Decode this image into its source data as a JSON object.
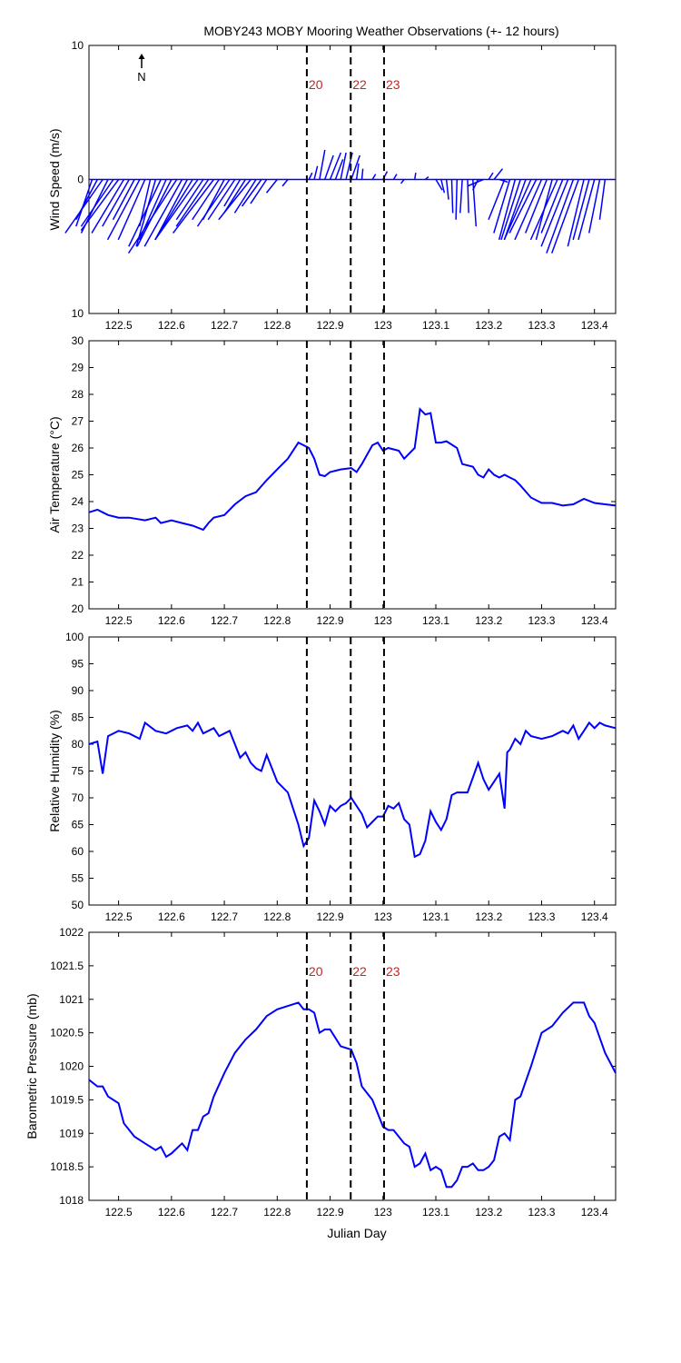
{
  "title": "MOBY243 MOBY Mooring Weather Observations (+- 12 hours)",
  "xlabel": "Julian Day",
  "x_ticks": [
    122.5,
    122.6,
    122.7,
    122.8,
    122.9,
    123,
    123.1,
    123.2,
    123.3,
    123.4
  ],
  "x_range": [
    122.444,
    123.44
  ],
  "line_color": "#0000ff",
  "marker_color": "#cc2222",
  "markers": [
    {
      "x": 122.856,
      "label": "20"
    },
    {
      "x": 122.939,
      "label": "22"
    },
    {
      "x": 123.002,
      "label": "23"
    }
  ],
  "north_label": "N",
  "chart_data": [
    {
      "type": "line",
      "name": "wind",
      "ylabel": "Wind Speed (m/s)",
      "ylim": [
        -10,
        10
      ],
      "yticks": [
        10,
        0,
        10
      ],
      "show_marker_labels": true,
      "vectors": {
        "x": [
          122.45,
          122.46,
          122.47,
          122.48,
          122.49,
          122.5,
          122.51,
          122.52,
          122.53,
          122.54,
          122.55,
          122.56,
          122.57,
          122.58,
          122.59,
          122.6,
          122.61,
          122.62,
          122.63,
          122.64,
          122.65,
          122.66,
          122.67,
          122.68,
          122.69,
          122.7,
          122.71,
          122.72,
          122.73,
          122.74,
          122.75,
          122.76,
          122.77,
          122.78,
          122.8,
          122.82,
          122.86,
          122.87,
          122.88,
          122.89,
          122.9,
          122.91,
          122.92,
          122.93,
          122.94,
          122.95,
          122.96,
          122.98,
          123.0,
          123.02,
          123.04,
          123.06,
          123.08,
          123.1,
          123.11,
          123.12,
          123.13,
          123.14,
          123.15,
          123.16,
          123.17,
          123.18,
          123.19,
          123.2,
          123.21,
          123.22,
          123.23,
          123.24,
          123.25,
          123.26,
          123.27,
          123.28,
          123.29,
          123.3,
          123.31,
          123.32,
          123.33,
          123.34,
          123.35,
          123.36,
          123.37,
          123.38,
          123.39,
          123.4,
          123.41,
          123.42
        ],
        "u": [
          -1.5,
          -2,
          -3.5,
          -2.5,
          -3,
          -3.5,
          -3,
          -2.5,
          -2,
          -3,
          -2.5,
          -1,
          -1.8,
          -3,
          -2.5,
          -3.2,
          -4.5,
          -3.5,
          -3,
          -3.5,
          -4,
          -2.5,
          -3,
          -3.8,
          -2.5,
          -2,
          -3,
          -2.5,
          -1.5,
          -2,
          -3,
          -2,
          -1.8,
          -1.5,
          -1,
          -0.5,
          0.3,
          0.3,
          0.5,
          0.8,
          1.0,
          0.7,
          0.5,
          0.6,
          0.8,
          0.2,
          0.1,
          0.3,
          0.4,
          0.3,
          -0.3,
          0.1,
          0.3,
          0.6,
          0.3,
          0.2,
          0.1,
          -0.1,
          -0.2,
          0.1,
          0.3,
          -0.5,
          -1.5,
          0.4,
          0.8,
          0.8,
          -1.5,
          -1.5,
          -1.5,
          -1.8,
          -2,
          -2.5,
          -2.5,
          -2.5,
          -2,
          -1.5,
          -2.5,
          -2,
          -2.5,
          -2.5,
          -2.5,
          -1.5,
          -1.5,
          -1.5,
          -1,
          -0.5
        ],
        "v": [
          -3.5,
          -3,
          -4,
          -4,
          -3.5,
          -3.8,
          -4,
          -3.5,
          -3,
          -4.5,
          -4.5,
          -3.5,
          -5,
          -5,
          -4.5,
          -5,
          -5.5,
          -5,
          -4.5,
          -4.5,
          -4.5,
          -3,
          -3.5,
          -4,
          -3,
          -3,
          -3.5,
          -3,
          -2,
          -2.5,
          -3,
          -2.5,
          -2,
          -1.8,
          -1,
          -0.5,
          0.5,
          1,
          2.2,
          1.8,
          2,
          1.5,
          2,
          2,
          1.8,
          1.2,
          0.8,
          0.4,
          0.6,
          0.4,
          -0.3,
          0.5,
          0.2,
          -0.8,
          -1,
          -1.5,
          -2.5,
          -3,
          -2.5,
          -2.5,
          -3.5,
          -0.8,
          -0.5,
          0.5,
          0.8,
          -0.2,
          -3,
          -4,
          -4.5,
          -4.5,
          -4.5,
          -4.5,
          -4,
          -4.5,
          -4,
          -4.5,
          -4.5,
          -4,
          -5,
          -5.5,
          -5.5,
          -5,
          -4.5,
          -4.5,
          -4,
          -3
        ]
      }
    },
    {
      "type": "line",
      "name": "air-temperature",
      "ylabel": "Air Temperature (°C)",
      "ylim": [
        20,
        30
      ],
      "yticks": [
        20,
        21,
        22,
        23,
        24,
        25,
        26,
        27,
        28,
        29,
        30
      ],
      "x": [
        122.444,
        122.46,
        122.47,
        122.48,
        122.5,
        122.52,
        122.55,
        122.57,
        122.58,
        122.6,
        122.62,
        122.64,
        122.66,
        122.67,
        122.68,
        122.7,
        122.72,
        122.74,
        122.76,
        122.78,
        122.8,
        122.82,
        122.84,
        122.85,
        122.86,
        122.87,
        122.88,
        122.89,
        122.9,
        122.92,
        122.94,
        122.95,
        122.96,
        122.98,
        122.99,
        123.0,
        123.01,
        123.03,
        123.04,
        123.06,
        123.07,
        123.08,
        123.09,
        123.1,
        123.11,
        123.12,
        123.14,
        123.15,
        123.17,
        123.18,
        123.19,
        123.2,
        123.21,
        123.22,
        123.23,
        123.24,
        123.25,
        123.26,
        123.28,
        123.3,
        123.32,
        123.34,
        123.36,
        123.38,
        123.4,
        123.42,
        123.44
      ],
      "y": [
        23.6,
        23.7,
        23.6,
        23.5,
        23.4,
        23.4,
        23.3,
        23.4,
        23.2,
        23.3,
        23.2,
        23.1,
        22.95,
        23.2,
        23.4,
        23.5,
        23.9,
        24.2,
        24.35,
        24.8,
        25.2,
        25.6,
        26.2,
        26.1,
        26.0,
        25.6,
        25.0,
        24.95,
        25.1,
        25.2,
        25.25,
        25.1,
        25.4,
        26.1,
        26.2,
        25.9,
        26.0,
        25.9,
        25.6,
        26.0,
        27.45,
        27.25,
        27.3,
        26.2,
        26.2,
        26.25,
        26.0,
        25.4,
        25.3,
        25.0,
        24.9,
        25.2,
        25.0,
        24.9,
        25.0,
        24.9,
        24.8,
        24.6,
        24.15,
        23.95,
        23.95,
        23.85,
        23.9,
        24.1,
        23.95,
        23.9,
        23.85
      ]
    },
    {
      "type": "line",
      "name": "relative-humidity",
      "ylabel": "Relative Humidity (%)",
      "ylim": [
        50,
        100
      ],
      "yticks": [
        50,
        55,
        60,
        65,
        70,
        75,
        80,
        85,
        90,
        95,
        100
      ],
      "x": [
        122.444,
        122.46,
        122.47,
        122.48,
        122.5,
        122.52,
        122.54,
        122.55,
        122.57,
        122.59,
        122.61,
        122.63,
        122.64,
        122.65,
        122.66,
        122.68,
        122.69,
        122.7,
        122.71,
        122.72,
        122.73,
        122.74,
        122.75,
        122.76,
        122.77,
        122.78,
        122.8,
        122.82,
        122.84,
        122.85,
        122.86,
        122.87,
        122.88,
        122.89,
        122.9,
        122.91,
        122.92,
        122.93,
        122.94,
        122.96,
        122.97,
        122.98,
        122.99,
        123.0,
        123.01,
        123.02,
        123.03,
        123.04,
        123.05,
        123.06,
        123.07,
        123.08,
        123.09,
        123.1,
        123.11,
        123.12,
        123.13,
        123.14,
        123.15,
        123.16,
        123.18,
        123.19,
        123.2,
        123.21,
        123.22,
        123.23,
        123.235,
        123.24,
        123.25,
        123.26,
        123.27,
        123.28,
        123.3,
        123.32,
        123.33,
        123.34,
        123.35,
        123.36,
        123.37,
        123.38,
        123.39,
        123.4,
        123.41,
        123.42,
        123.44
      ],
      "y": [
        80,
        80.5,
        74.5,
        81.5,
        82.5,
        82,
        81,
        84,
        82.5,
        82,
        83,
        83.5,
        82.5,
        84,
        82,
        83,
        81.5,
        82,
        82.5,
        80,
        77.5,
        78.5,
        76.5,
        75.5,
        75,
        78,
        73,
        71,
        65,
        61,
        62.5,
        69.5,
        67.5,
        65,
        68.5,
        67.5,
        68.5,
        69,
        70,
        67,
        64.5,
        65.5,
        66.5,
        66.5,
        68.5,
        68,
        69,
        66,
        65,
        59,
        59.5,
        62,
        67.5,
        65.5,
        64,
        66,
        70.5,
        71,
        71,
        71,
        76.5,
        73.5,
        71.5,
        73,
        74.5,
        68,
        78.5,
        79,
        81,
        80,
        82.5,
        81.5,
        81,
        81.5,
        82,
        82.5,
        82,
        83.5,
        81,
        82.5,
        84,
        83,
        84,
        83.5,
        83
      ]
    },
    {
      "type": "line",
      "name": "barometric-pressure",
      "ylabel": "Barometric Pressure (mb)",
      "xlabel": "Julian Day",
      "ylim": [
        1018,
        1022
      ],
      "yticks": [
        1018,
        1018.5,
        1019,
        1019.5,
        1020,
        1020.5,
        1021,
        1021.5,
        1022
      ],
      "show_marker_labels": true,
      "x": [
        122.444,
        122.46,
        122.47,
        122.48,
        122.5,
        122.51,
        122.52,
        122.53,
        122.55,
        122.57,
        122.58,
        122.59,
        122.6,
        122.62,
        122.63,
        122.64,
        122.65,
        122.66,
        122.67,
        122.68,
        122.7,
        122.72,
        122.74,
        122.76,
        122.78,
        122.8,
        122.82,
        122.84,
        122.85,
        122.86,
        122.87,
        122.88,
        122.89,
        122.9,
        122.92,
        122.94,
        122.95,
        122.96,
        122.97,
        122.98,
        123.0,
        123.01,
        123.02,
        123.04,
        123.05,
        123.06,
        123.07,
        123.08,
        123.09,
        123.1,
        123.11,
        123.12,
        123.13,
        123.14,
        123.15,
        123.16,
        123.17,
        123.18,
        123.19,
        123.2,
        123.21,
        123.22,
        123.23,
        123.24,
        123.25,
        123.26,
        123.28,
        123.3,
        123.32,
        123.34,
        123.36,
        123.38,
        123.39,
        123.4,
        123.42,
        123.44
      ],
      "y": [
        1019.8,
        1019.7,
        1019.7,
        1019.55,
        1019.45,
        1019.15,
        1019.05,
        1018.95,
        1018.85,
        1018.75,
        1018.8,
        1018.65,
        1018.7,
        1018.85,
        1018.75,
        1019.05,
        1019.05,
        1019.25,
        1019.3,
        1019.55,
        1019.9,
        1020.2,
        1020.4,
        1020.55,
        1020.75,
        1020.85,
        1020.9,
        1020.95,
        1020.85,
        1020.85,
        1020.8,
        1020.5,
        1020.55,
        1020.55,
        1020.3,
        1020.25,
        1020.05,
        1019.7,
        1019.6,
        1019.5,
        1019.1,
        1019.05,
        1019.05,
        1018.85,
        1018.8,
        1018.5,
        1018.55,
        1018.7,
        1018.45,
        1018.5,
        1018.45,
        1018.2,
        1018.2,
        1018.3,
        1018.5,
        1018.5,
        1018.55,
        1018.45,
        1018.45,
        1018.5,
        1018.6,
        1018.95,
        1019.0,
        1018.9,
        1019.5,
        1019.55,
        1020.0,
        1020.5,
        1020.6,
        1020.8,
        1020.95,
        1020.95,
        1020.75,
        1020.65,
        1020.2,
        1019.9
      ]
    }
  ]
}
